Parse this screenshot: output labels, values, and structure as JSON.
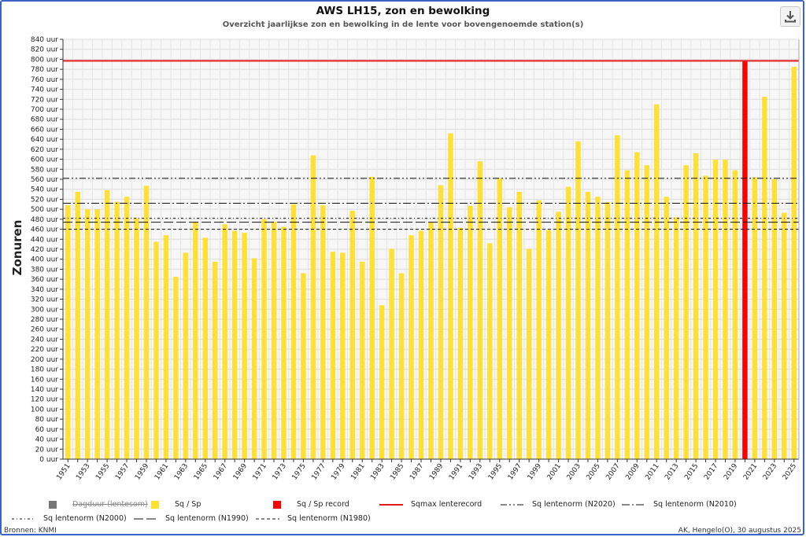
{
  "chart_data": {
    "type": "bar",
    "title": "AWS LH15, zon en bewolking",
    "subtitle": "Overzicht jaarlijkse zon en bewolking in de lente voor bovengenoemde station(s)",
    "ylabel": "Zonuren",
    "xlabel": "",
    "ylim": [
      0,
      840
    ],
    "y_tick_step": 20,
    "y_tick_suffix": " uur",
    "grid": true,
    "x": [
      1951,
      1952,
      1953,
      1954,
      1955,
      1956,
      1957,
      1958,
      1959,
      1960,
      1961,
      1962,
      1963,
      1964,
      1965,
      1966,
      1967,
      1968,
      1969,
      1970,
      1971,
      1972,
      1973,
      1974,
      1975,
      1976,
      1977,
      1978,
      1979,
      1980,
      1981,
      1982,
      1983,
      1984,
      1985,
      1986,
      1987,
      1988,
      1989,
      1990,
      1991,
      1992,
      1993,
      1994,
      1995,
      1996,
      1997,
      1998,
      1999,
      2000,
      2001,
      2002,
      2003,
      2004,
      2005,
      2006,
      2007,
      2008,
      2009,
      2010,
      2011,
      2012,
      2013,
      2014,
      2015,
      2016,
      2017,
      2018,
      2019,
      2020,
      2021,
      2022,
      2023,
      2024,
      2025
    ],
    "x_tick_labels": [
      "1951",
      "1953",
      "1955",
      "1957",
      "1959",
      "1961",
      "1963",
      "1965",
      "1967",
      "1969",
      "1971",
      "1973",
      "1975",
      "1977",
      "1979",
      "1981",
      "1983",
      "1985",
      "1987",
      "1989",
      "1991",
      "1993",
      "1995",
      "1997",
      "1999",
      "2001",
      "2003",
      "2005",
      "2007",
      "2009",
      "2011",
      "2013",
      "2015",
      "2017",
      "2019",
      "2021",
      "2023",
      "2025"
    ],
    "series": [
      {
        "name": "Sq / Sp",
        "color": "#ffe135",
        "values": [
          508,
          535,
          500,
          500,
          538,
          515,
          525,
          482,
          547,
          435,
          448,
          365,
          413,
          475,
          443,
          395,
          470,
          457,
          453,
          402,
          480,
          475,
          465,
          510,
          372,
          608,
          508,
          415,
          413,
          497,
          395,
          565,
          308,
          421,
          372,
          448,
          457,
          473,
          548,
          652,
          463,
          507,
          596,
          432,
          562,
          504,
          535,
          421,
          518,
          458,
          495,
          545,
          636,
          535,
          525,
          514,
          648,
          578,
          614,
          588,
          710,
          525,
          484,
          588,
          612,
          567,
          599,
          599,
          578,
          797,
          564,
          725,
          560,
          493,
          785
        ],
        "highlight": {
          "year": 2020,
          "color": "#ff0000",
          "label": "Sq / Sp record"
        }
      }
    ],
    "reference_lines": [
      {
        "name": "Sqmax lenterecord",
        "value": 797,
        "color": "#e31a1c",
        "style": "solid"
      },
      {
        "name": "Sq lentenorm (N2020)",
        "value": 562,
        "color": "#111111",
        "style": "dash-dot-dot"
      },
      {
        "name": "Sq lentenorm (N2010)",
        "value": 512,
        "color": "#111111",
        "style": "dash-dot"
      },
      {
        "name": "Sq lentenorm (N2000)",
        "value": 482,
        "color": "#111111",
        "style": "dot-dash"
      },
      {
        "name": "Sq lentenorm (N1990)",
        "value": 474,
        "color": "#111111",
        "style": "long-dash"
      },
      {
        "name": "Sq lentenorm (N1980)",
        "value": 460,
        "color": "#111111",
        "style": "short-dash"
      }
    ],
    "legend": [
      {
        "label": "Dagduur (lentesom)",
        "symbol": "square",
        "color": "#777777",
        "hidden": true
      },
      {
        "label": "Sq / Sp",
        "symbol": "square",
        "color": "#ffe135"
      },
      {
        "label": "Sq / Sp record",
        "symbol": "square",
        "color": "#ff0000"
      },
      {
        "label": "Sqmax lenterecord",
        "symbol": "line",
        "color": "#e31a1c",
        "style": "solid"
      },
      {
        "label": "Sq lentenorm (N2020)",
        "symbol": "line",
        "color": "#111111",
        "style": "dash-dot-dot"
      },
      {
        "label": "Sq lentenorm (N2010)",
        "symbol": "line",
        "color": "#111111",
        "style": "dash-dot"
      },
      {
        "label": "Sq lentenorm (N2000)",
        "symbol": "line",
        "color": "#111111",
        "style": "dot-dash"
      },
      {
        "label": "Sq lentenorm (N1990)",
        "symbol": "line",
        "color": "#111111",
        "style": "long-dash"
      },
      {
        "label": "Sq lentenorm (N1980)",
        "symbol": "line",
        "color": "#111111",
        "style": "short-dash"
      }
    ],
    "legend_placement": "bottom"
  },
  "footer": {
    "sources": "Bronnen: KNMI",
    "credit": "AK, Hengelo(O), 30 augustus 2025"
  },
  "toolbar": {
    "download_icon": "download-icon"
  }
}
